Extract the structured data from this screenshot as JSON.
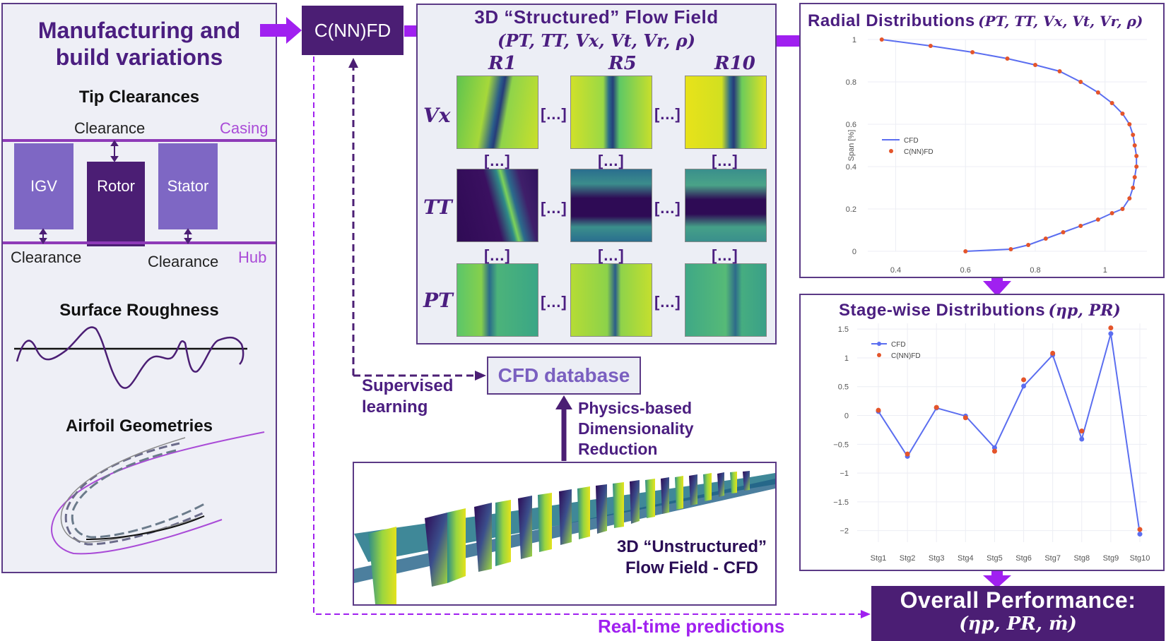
{
  "left_panel": {
    "title_line1": "Manufacturing and",
    "title_line2": "build variations",
    "tip_clearances": "Tip Clearances",
    "clearance_top": "Clearance",
    "casing": "Casing",
    "hub": "Hub",
    "igv": "IGV",
    "rotor": "Rotor",
    "stator": "Stator",
    "clearance_bottom_left": "Clearance",
    "clearance_bottom_right": "Clearance",
    "surface_roughness": "Surface Roughness",
    "airfoil_geometries": "Airfoil Geometries"
  },
  "cnnfd": "C(NN)FD",
  "flow_field": {
    "title": "3D “Structured” Flow Field",
    "vars": "(PT, TT, Vx, Vt, Vr, ρ)",
    "cols": [
      "R1",
      "R5",
      "R10"
    ],
    "rows": [
      "Vx",
      "TT",
      "PT"
    ],
    "ellipsis": "[…]"
  },
  "radial": {
    "title": "Radial Distributions",
    "vars": "(PT, TT, Vx, Vt, Vr, ρ)",
    "ylabel": "Span [%]",
    "legend_cfd": "CFD",
    "legend_cnnfd": "C(NN)FD",
    "x_ticks": [
      "0.4",
      "0.6",
      "0.8",
      "1"
    ],
    "y_ticks": [
      "0",
      "0.2",
      "0.4",
      "0.6",
      "0.8",
      "1"
    ]
  },
  "stage": {
    "title": "Stage-wise Distributions",
    "vars": "(ηp, PR)",
    "legend_cfd": "CFD",
    "legend_cnnfd": "C(NN)FD",
    "y_ticks": [
      "1.5",
      "1",
      "0.5",
      "0",
      "−0.5",
      "−1",
      "−1.5",
      "−2"
    ]
  },
  "cfd_database": "CFD database",
  "supervised_line1": "Supervised",
  "supervised_line2": "learning",
  "physics_line1": "Physics-based",
  "physics_line2": "Dimensionality",
  "physics_line3": "Reduction",
  "unstructured_line1": "3D “Unstructured”",
  "unstructured_line2": "Flow Field - CFD",
  "overall_title": "Overall Performance:",
  "overall_vars": "(ηp, PR, ṁ)",
  "realtime": "Real-time predictions",
  "colors": {
    "dark_purple": "#4b1e74",
    "accent_purple": "#a020f0",
    "cfd_line": "#5b6ef0",
    "cnnfd_dot": "#e4552b"
  },
  "chart_data": [
    {
      "type": "line",
      "ylabel": "Span [%]",
      "xlim": [
        0.32,
        1.12
      ],
      "ylim": [
        0,
        1
      ],
      "legend": "left-middle",
      "series": [
        {
          "name": "CFD",
          "x": [
            0.6,
            0.73,
            0.78,
            0.83,
            0.88,
            0.93,
            0.98,
            1.02,
            1.05,
            1.07,
            1.08,
            1.085,
            1.09,
            1.09,
            1.085,
            1.08,
            1.07,
            1.05,
            1.02,
            0.98,
            0.93,
            0.87,
            0.8,
            0.72,
            0.62,
            0.5,
            0.36
          ],
          "y": [
            0,
            0.01,
            0.03,
            0.06,
            0.09,
            0.12,
            0.15,
            0.18,
            0.2,
            0.25,
            0.3,
            0.35,
            0.4,
            0.45,
            0.5,
            0.55,
            0.6,
            0.65,
            0.7,
            0.75,
            0.8,
            0.85,
            0.88,
            0.91,
            0.94,
            0.97,
            1.0
          ]
        },
        {
          "name": "C(NN)FD",
          "x": [
            0.6,
            0.73,
            0.78,
            0.83,
            0.88,
            0.93,
            0.98,
            1.02,
            1.05,
            1.07,
            1.08,
            1.085,
            1.09,
            1.09,
            1.085,
            1.08,
            1.07,
            1.05,
            1.02,
            0.98,
            0.93,
            0.87,
            0.8,
            0.72,
            0.62,
            0.5,
            0.36
          ],
          "y": [
            0,
            0.01,
            0.03,
            0.06,
            0.09,
            0.12,
            0.15,
            0.18,
            0.2,
            0.25,
            0.3,
            0.35,
            0.4,
            0.45,
            0.5,
            0.55,
            0.6,
            0.65,
            0.7,
            0.75,
            0.8,
            0.85,
            0.88,
            0.91,
            0.94,
            0.97,
            1.0
          ]
        }
      ]
    },
    {
      "type": "line",
      "categories": [
        "Stg1",
        "Stg2",
        "Stg3",
        "Stg4",
        "Stg5",
        "Stg6",
        "Stg7",
        "Stg8",
        "Stg9",
        "Stg10"
      ],
      "ylim": [
        -2.2,
        1.6
      ],
      "legend": "top-left",
      "series": [
        {
          "name": "CFD",
          "values": [
            0.07,
            -0.71,
            0.13,
            -0.01,
            -0.56,
            0.51,
            1.05,
            -0.41,
            1.42,
            -2.06
          ]
        },
        {
          "name": "C(NN)FD",
          "values": [
            0.09,
            -0.67,
            0.14,
            -0.04,
            -0.62,
            0.62,
            1.08,
            -0.27,
            1.52,
            -1.98
          ]
        }
      ]
    }
  ]
}
